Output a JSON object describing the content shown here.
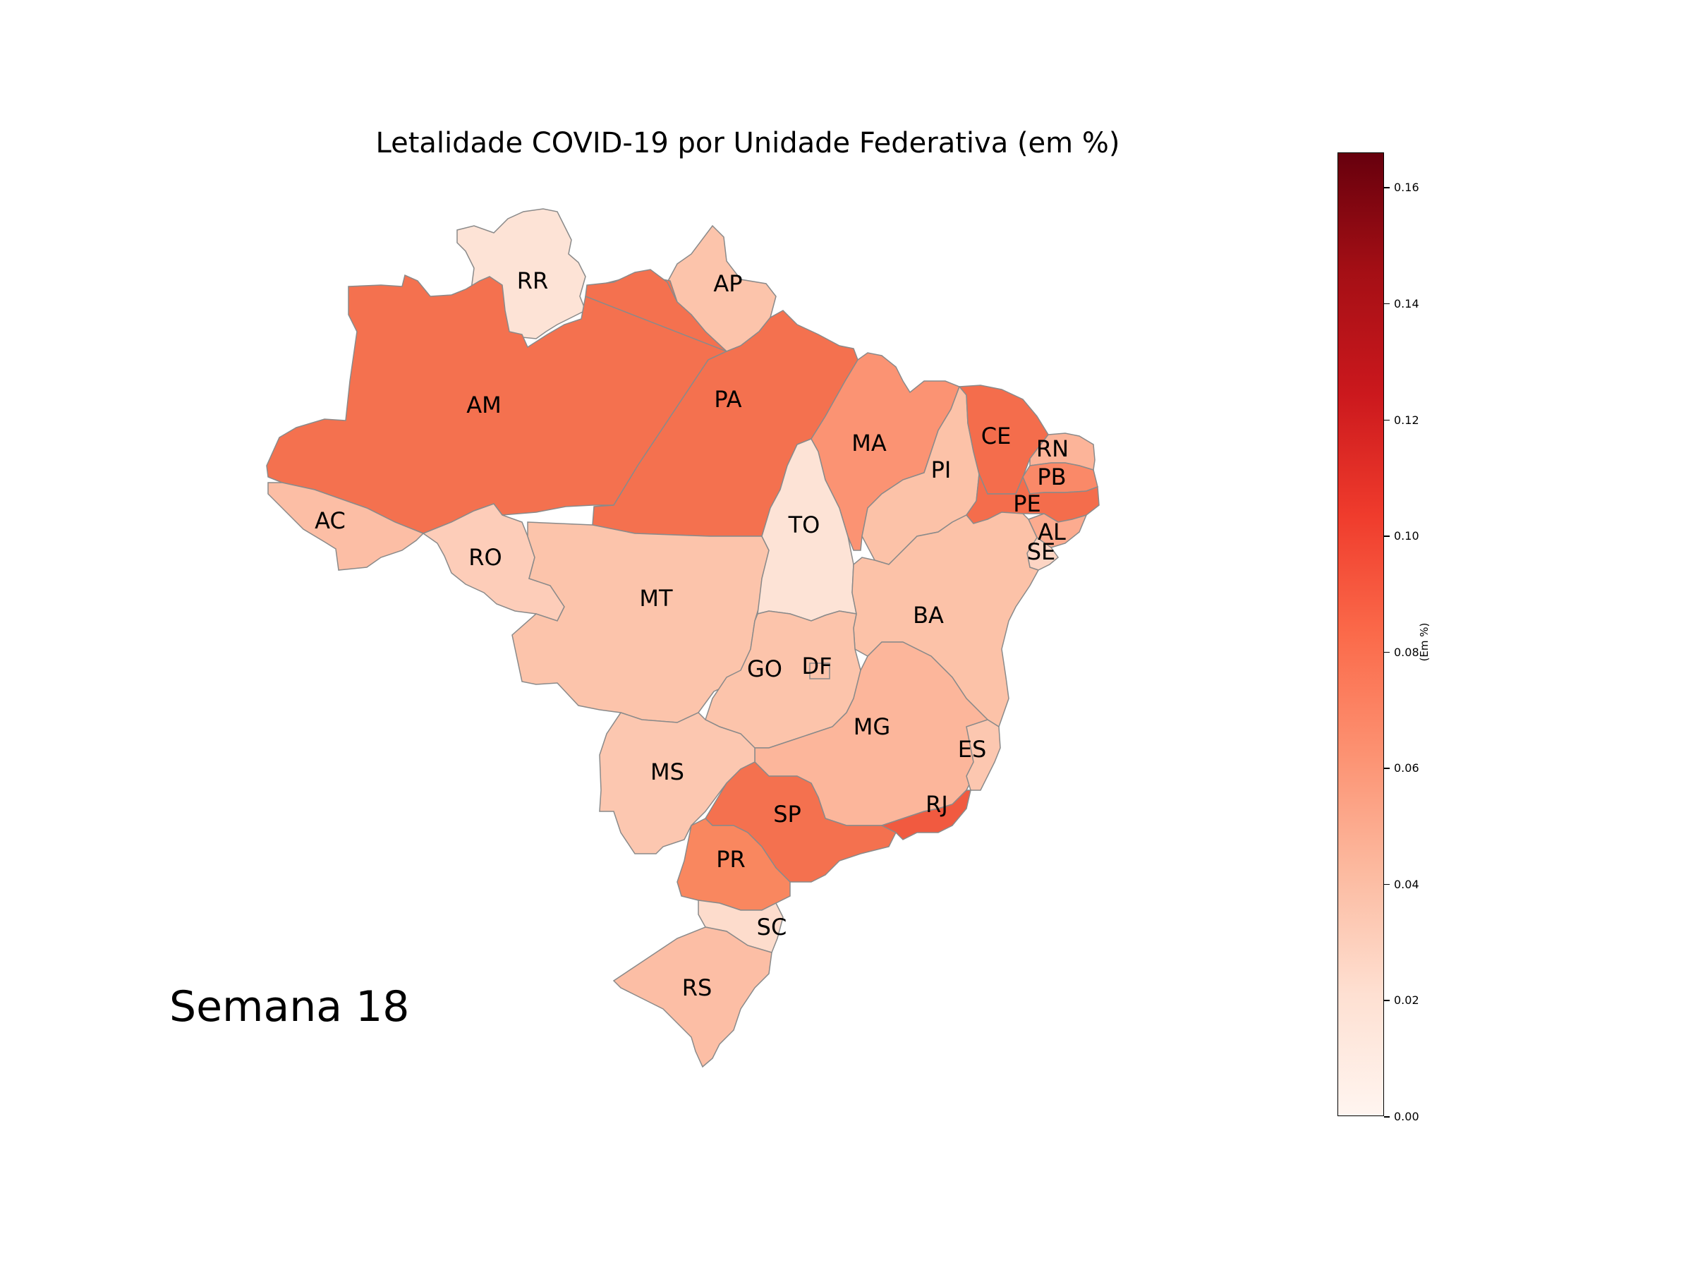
{
  "title": "Letalidade COVID-19 por Unidade Federativa (em %)",
  "week_label": "Semana 18",
  "colorbar": {
    "label": "(Em %)",
    "min": 0.0,
    "max": 0.166,
    "ticks": [
      "0.00",
      "0.02",
      "0.04",
      "0.06",
      "0.08",
      "0.10",
      "0.12",
      "0.14",
      "0.16"
    ],
    "colormap": "Reds",
    "gradient_colors": [
      "#fff5f0",
      "#fee0d2",
      "#fcbba1",
      "#fc9272",
      "#fb6a4a",
      "#ef3b2c",
      "#cb181d",
      "#a50f15",
      "#67000d"
    ]
  },
  "chart_data": {
    "type": "choropleth",
    "title": "Letalidade COVID-19 por Unidade Federativa (em %)",
    "value_unit": "%",
    "states": [
      {
        "code": "RR",
        "value": 0.012,
        "color": "#fde3d6"
      },
      {
        "code": "AP",
        "value": 0.032,
        "color": "#fcc4ab"
      },
      {
        "code": "AM",
        "value": 0.076,
        "color": "#f4714f"
      },
      {
        "code": "PA",
        "value": 0.076,
        "color": "#f4714f"
      },
      {
        "code": "AC",
        "value": 0.035,
        "color": "#fcbea5"
      },
      {
        "code": "RO",
        "value": 0.027,
        "color": "#fdcdb9"
      },
      {
        "code": "MT",
        "value": 0.032,
        "color": "#fcc4ab"
      },
      {
        "code": "TO",
        "value": 0.012,
        "color": "#fde3d6"
      },
      {
        "code": "MA",
        "value": 0.058,
        "color": "#fb9373"
      },
      {
        "code": "PI",
        "value": 0.033,
        "color": "#fcc2a8"
      },
      {
        "code": "CE",
        "value": 0.078,
        "color": "#f46d4c"
      },
      {
        "code": "RN",
        "value": 0.04,
        "color": "#fcb499"
      },
      {
        "code": "PB",
        "value": 0.063,
        "color": "#fa8968"
      },
      {
        "code": "PE",
        "value": 0.078,
        "color": "#f46d4c"
      },
      {
        "code": "AL",
        "value": 0.045,
        "color": "#fcab8f"
      },
      {
        "code": "SE",
        "value": 0.022,
        "color": "#fdd5c4"
      },
      {
        "code": "BA",
        "value": 0.033,
        "color": "#fcc2a8"
      },
      {
        "code": "GO",
        "value": 0.032,
        "color": "#fcc4ab"
      },
      {
        "code": "DF",
        "value": 0.032,
        "color": "#fcc4ab"
      },
      {
        "code": "MG",
        "value": 0.039,
        "color": "#fcb69b"
      },
      {
        "code": "ES",
        "value": 0.03,
        "color": "#fcc7b0"
      },
      {
        "code": "MS",
        "value": 0.03,
        "color": "#fcc7b0"
      },
      {
        "code": "SP",
        "value": 0.076,
        "color": "#f4714f"
      },
      {
        "code": "RJ",
        "value": 0.088,
        "color": "#f15a40"
      },
      {
        "code": "PR",
        "value": 0.065,
        "color": "#f9875f"
      },
      {
        "code": "SC",
        "value": 0.018,
        "color": "#fddccc"
      },
      {
        "code": "RS",
        "value": 0.035,
        "color": "#fcbea5"
      }
    ]
  }
}
